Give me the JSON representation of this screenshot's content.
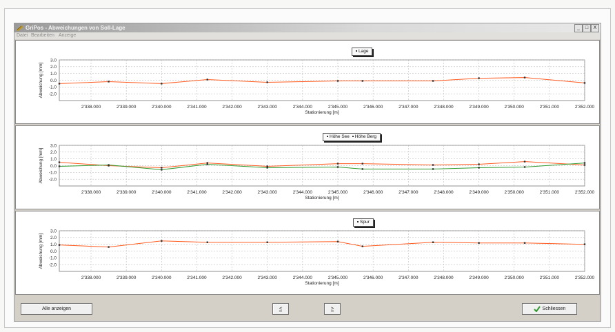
{
  "window": {
    "title": "GriPos - Abweichungen von Soll-Lage"
  },
  "controls": {
    "minimize": "_",
    "maximize": "□",
    "close": "X"
  },
  "menu": [
    "Datei",
    "Bearbeiten",
    "Anzeige"
  ],
  "buttons": {
    "show_all": "Alle anzeigen",
    "prev": "<",
    "next": ">",
    "close": "Schliessen"
  },
  "colors": {
    "orange": "#ff5a1e",
    "green": "#2e9a2e",
    "marker": "#333333",
    "grid": "#b0b0b0"
  },
  "chart_data": [
    {
      "type": "line",
      "xlabel": "Stationierung [m]",
      "ylabel": "Abweichung [mm]",
      "ylim": [
        -3,
        3
      ],
      "yticks": [
        "3.0",
        "2.0",
        "1.0",
        "0.0",
        "-1.0",
        "-2.0"
      ],
      "xlim": [
        2337.1,
        2352.0
      ],
      "xticks": [
        "2'338.000",
        "2'339.000",
        "2'340.000",
        "2'341.000",
        "2'342.000",
        "2'343.000",
        "2'344.000",
        "2'345.000",
        "2'346.000",
        "2'347.000",
        "2'348.000",
        "2'349.000",
        "2'350.000",
        "2'351.000",
        "2'352.000"
      ],
      "grid": true,
      "legend": "top-center",
      "series": [
        {
          "name": "Lage",
          "color": "#ff5a1e",
          "x": [
            2337.1,
            2338.5,
            2340.0,
            2341.3,
            2343.0,
            2345.0,
            2345.7,
            2347.7,
            2349.0,
            2350.3,
            2352.0
          ],
          "y": [
            -0.5,
            -0.2,
            -0.5,
            0.1,
            -0.3,
            -0.1,
            -0.1,
            -0.1,
            0.3,
            0.4,
            -0.4
          ]
        }
      ]
    },
    {
      "type": "line",
      "xlabel": "Stationierung [m]",
      "ylabel": "Abweichung [mm]",
      "ylim": [
        -3,
        3
      ],
      "yticks": [
        "3.0",
        "2.0",
        "1.0",
        "0.0",
        "-1.0",
        "-2.0"
      ],
      "xlim": [
        2337.1,
        2352.0
      ],
      "xticks": [
        "2'338.000",
        "2'339.000",
        "2'340.000",
        "2'341.000",
        "2'342.000",
        "2'343.000",
        "2'344.000",
        "2'345.000",
        "2'346.000",
        "2'347.000",
        "2'348.000",
        "2'349.000",
        "2'350.000",
        "2'351.000",
        "2'352.000"
      ],
      "grid": true,
      "legend": "top-center",
      "series": [
        {
          "name": "Höhe See",
          "color": "#ff5a1e",
          "x": [
            2337.1,
            2338.5,
            2340.0,
            2341.3,
            2343.0,
            2345.0,
            2345.7,
            2347.7,
            2349.0,
            2350.3,
            2352.0
          ],
          "y": [
            0.5,
            0.0,
            -0.3,
            0.4,
            -0.1,
            0.3,
            0.3,
            0.1,
            0.2,
            0.6,
            0.1
          ]
        },
        {
          "name": "Höhe Berg",
          "color": "#2e9a2e",
          "x": [
            2337.1,
            2338.5,
            2340.0,
            2341.3,
            2343.0,
            2345.0,
            2345.7,
            2347.7,
            2349.0,
            2350.3,
            2352.0
          ],
          "y": [
            -0.1,
            0.1,
            -0.6,
            0.2,
            -0.3,
            -0.2,
            -0.5,
            -0.5,
            -0.3,
            -0.2,
            0.4
          ]
        }
      ]
    },
    {
      "type": "line",
      "xlabel": "Stationierung [m]",
      "ylabel": "Abweichung [mm]",
      "ylim": [
        -3,
        3
      ],
      "yticks": [
        "3.0",
        "2.0",
        "1.0",
        "0.0",
        "-1.0",
        "-2.0"
      ],
      "xlim": [
        2337.1,
        2352.0
      ],
      "xticks": [
        "2'338.000",
        "2'339.000",
        "2'340.000",
        "2'341.000",
        "2'342.000",
        "2'343.000",
        "2'344.000",
        "2'345.000",
        "2'346.000",
        "2'347.000",
        "2'348.000",
        "2'349.000",
        "2'350.000",
        "2'351.000",
        "2'352.000"
      ],
      "grid": true,
      "legend": "top-center",
      "series": [
        {
          "name": "Spur",
          "color": "#ff5a1e",
          "x": [
            2337.1,
            2338.5,
            2340.0,
            2341.3,
            2343.0,
            2345.0,
            2345.7,
            2347.7,
            2349.0,
            2350.3,
            2352.0
          ],
          "y": [
            0.9,
            0.6,
            1.5,
            1.3,
            1.3,
            1.4,
            0.7,
            1.3,
            1.2,
            1.2,
            1.0
          ]
        }
      ]
    }
  ]
}
